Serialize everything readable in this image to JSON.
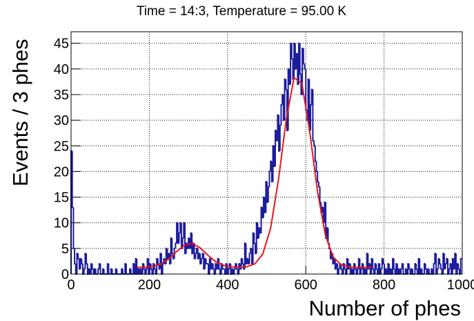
{
  "chart_data": {
    "type": "histogram",
    "title": "Time = 14:3, Temperature = 95.00 K",
    "xlabel": "Number of phes",
    "ylabel": "Events / 3 phes",
    "color": "#1c1c9c",
    "grid": true,
    "xlim": [
      0,
      1000
    ],
    "ylim": [
      0,
      47.25
    ],
    "xticks": [
      0,
      200,
      400,
      600,
      800,
      1000
    ],
    "yticks": [
      0,
      5,
      10,
      15,
      20,
      25,
      30,
      35,
      40,
      45
    ],
    "bins": [
      0,
      3,
      6,
      9,
      12,
      15,
      18,
      21,
      24,
      27,
      30,
      33,
      36,
      39,
      42,
      45,
      48,
      51,
      54,
      57,
      60,
      63,
      66,
      69,
      72,
      75,
      78,
      81,
      84,
      87,
      90,
      93,
      96,
      99,
      102,
      105,
      108,
      111,
      114,
      117,
      120,
      123,
      126,
      129,
      132,
      135,
      138,
      141,
      144,
      147,
      150,
      153,
      156,
      159,
      162,
      165,
      168,
      171,
      174,
      177,
      180,
      183,
      186,
      189,
      192,
      195,
      198,
      201,
      204,
      207,
      210,
      213,
      216,
      219,
      222,
      225,
      228,
      231,
      234,
      237,
      240,
      243,
      246,
      249,
      252,
      255,
      258,
      261,
      264,
      267,
      270,
      273,
      276,
      279,
      282,
      285,
      288,
      291,
      294,
      297,
      300,
      303,
      306,
      309,
      312,
      315,
      318,
      321,
      324,
      327,
      330,
      333,
      336,
      339,
      342,
      345,
      348,
      351,
      354,
      357,
      360,
      363,
      366,
      369,
      372,
      375,
      378,
      381,
      384,
      387,
      390,
      393,
      396,
      399,
      402,
      405,
      408,
      411,
      414,
      417,
      420,
      423,
      426,
      429,
      432,
      435,
      438,
      441,
      444,
      447,
      450,
      453,
      456,
      459,
      462,
      465,
      468,
      471,
      474,
      477,
      480,
      483,
      486,
      489,
      492,
      495,
      498,
      501,
      504,
      507,
      510,
      513,
      516,
      519,
      522,
      525,
      528,
      531,
      534,
      537,
      540,
      543,
      546,
      549,
      552,
      555,
      558,
      561,
      564,
      567,
      570,
      573,
      576,
      579,
      582,
      585,
      588,
      591,
      594,
      597,
      600,
      603,
      606,
      609,
      612,
      615,
      618,
      621,
      624,
      627,
      630,
      633,
      636,
      639,
      642,
      645,
      648,
      651,
      654,
      657,
      660,
      663,
      666,
      669,
      672,
      675,
      678,
      681,
      684,
      687,
      690,
      693,
      696,
      699,
      702,
      705,
      708,
      711,
      714,
      717,
      720,
      723,
      726,
      729,
      732,
      735,
      738,
      741,
      744,
      747,
      750,
      753,
      756,
      759,
      762,
      765,
      768,
      771,
      774,
      777,
      780,
      783,
      786,
      789,
      792,
      795,
      798,
      801,
      804,
      807,
      810,
      813,
      816,
      819,
      822,
      825,
      828,
      831,
      834,
      837,
      840,
      843,
      846,
      849,
      852,
      855,
      858,
      861,
      864,
      867,
      870,
      873,
      876,
      879,
      882,
      885,
      888,
      891,
      894,
      897,
      900,
      903,
      906,
      909,
      912,
      915,
      918,
      921,
      924,
      927,
      930,
      933,
      936,
      939,
      942,
      945,
      948,
      951,
      954,
      957,
      960,
      963,
      966,
      969,
      972,
      975,
      978,
      981,
      984,
      987,
      990,
      993,
      996,
      999
    ],
    "values": [
      24,
      13,
      5,
      2,
      0,
      4,
      3,
      1,
      3,
      2,
      0,
      1,
      4,
      2,
      0,
      1,
      0,
      2,
      1,
      0,
      1,
      0,
      0,
      1,
      2,
      0,
      0,
      1,
      0,
      0,
      0,
      2,
      0,
      0,
      1,
      0,
      0,
      0,
      1,
      0,
      0,
      0,
      0,
      1,
      0,
      0,
      2,
      0,
      0,
      0,
      1,
      0,
      0,
      2,
      0,
      3,
      0,
      1,
      0,
      1,
      0,
      2,
      1,
      0,
      1,
      3,
      0,
      2,
      1,
      0,
      2,
      1,
      0,
      3,
      2,
      1,
      4,
      0,
      2,
      3,
      2,
      5,
      3,
      4,
      2,
      7,
      4,
      3,
      5,
      6,
      10,
      6,
      8,
      10,
      5,
      7,
      10,
      4,
      6,
      5,
      7,
      5,
      8,
      4,
      6,
      3,
      4,
      5,
      3,
      4,
      2,
      3,
      4,
      1,
      3,
      2,
      2,
      0,
      3,
      1,
      2,
      1,
      0,
      2,
      1,
      3,
      1,
      0,
      2,
      1,
      1,
      0,
      2,
      0,
      1,
      2,
      0,
      1,
      0,
      1,
      2,
      1,
      0,
      2,
      1,
      3,
      2,
      1,
      6,
      2,
      3,
      2,
      4,
      5,
      2,
      8,
      6,
      4,
      10,
      7,
      9,
      8,
      13,
      11,
      15,
      12,
      18,
      14,
      17,
      20,
      22,
      18,
      25,
      21,
      28,
      26,
      31,
      24,
      29,
      33,
      35,
      30,
      38,
      36,
      28,
      40,
      37,
      45,
      42,
      38,
      45,
      40,
      43,
      37,
      45,
      39,
      35,
      44,
      41,
      40,
      32,
      30,
      38,
      28,
      33,
      36,
      26,
      25,
      22,
      20,
      18,
      17,
      14,
      12,
      13,
      10,
      14,
      7,
      9,
      6,
      5,
      3,
      4,
      2,
      3,
      1,
      2,
      0,
      1,
      2,
      1,
      0,
      2,
      1,
      0,
      3,
      1,
      2,
      0,
      1,
      0,
      2,
      1,
      0,
      1,
      3,
      0,
      1,
      2,
      0,
      1,
      0,
      4,
      1,
      2,
      0,
      3,
      1,
      0,
      2,
      1,
      0,
      2,
      0,
      1,
      3,
      2,
      0,
      1,
      0,
      2,
      0,
      1,
      0,
      3,
      1,
      0,
      2,
      0,
      1,
      0,
      1,
      2,
      0,
      0,
      1,
      0,
      2,
      1,
      0,
      1,
      0,
      0,
      2,
      1,
      0,
      3,
      0,
      1,
      0,
      0,
      2,
      1,
      0,
      1,
      0,
      0,
      1,
      0,
      2,
      4,
      0,
      1,
      3,
      2,
      1,
      0,
      4,
      1,
      2,
      3,
      0,
      1,
      2,
      0,
      3,
      1,
      4,
      0,
      2,
      1,
      0,
      3
    ],
    "fit": {
      "color": "#e8141c",
      "x": [
        170,
        190,
        210,
        230,
        250,
        270,
        290,
        310,
        330,
        350,
        370,
        390,
        410,
        430,
        450,
        470,
        490,
        510,
        530,
        550,
        570,
        590,
        610,
        630,
        650,
        670,
        690,
        710,
        730,
        750,
        770
      ],
      "values": [
        1.3,
        1.35,
        1.5,
        1.96,
        2.95,
        4.4,
        5.65,
        5.95,
        5.1,
        3.65,
        2.4,
        1.7,
        1.4,
        1.33,
        1.45,
        2.0,
        3.9,
        8.9,
        18.3,
        30.1,
        38.3,
        37.2,
        27.8,
        16.1,
        7.6,
        3.3,
        1.8,
        1.4,
        1.3,
        1.3,
        1.3
      ]
    }
  }
}
